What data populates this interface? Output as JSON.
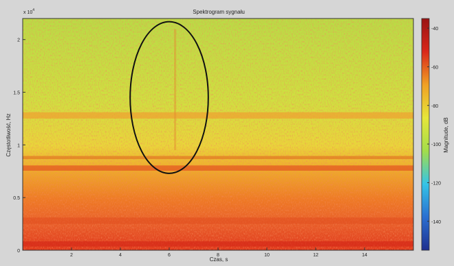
{
  "chart_data": {
    "type": "heatmap",
    "title": "Spektrogram sygnału",
    "xlabel": "Czas, s",
    "ylabel": "Częstotliwość, Hz",
    "y_exponent_label": "x 10",
    "y_exponent_power": "4",
    "xlim": [
      0,
      16
    ],
    "ylim": [
      0,
      2.2
    ],
    "x_ticks": [
      2,
      4,
      6,
      8,
      10,
      12,
      14
    ],
    "y_ticks": [
      0,
      0.5,
      1,
      1.5,
      2
    ],
    "colorbar": {
      "label": "Magnitude, dB",
      "range": [
        -155,
        -35
      ],
      "ticks": [
        -40,
        -60,
        -80,
        -100,
        -120,
        -140
      ],
      "colormap": [
        "#1f2f8f",
        "#2a6fd1",
        "#35c4e6",
        "#a3dd4a",
        "#e6e63a",
        "#f0a024",
        "#d9271a",
        "#9a1414"
      ]
    },
    "annotation": {
      "shape": "ellipse",
      "center_time_s": 6.0,
      "center_freq": 1.45,
      "time_half_width_s": 1.6,
      "freq_half_height": 0.72
    },
    "colors": {
      "top_band": "#b9dc45",
      "mid_band": "#e9d63a",
      "low_band": "#ee7a24",
      "bottom_band": "#e0391c"
    }
  }
}
